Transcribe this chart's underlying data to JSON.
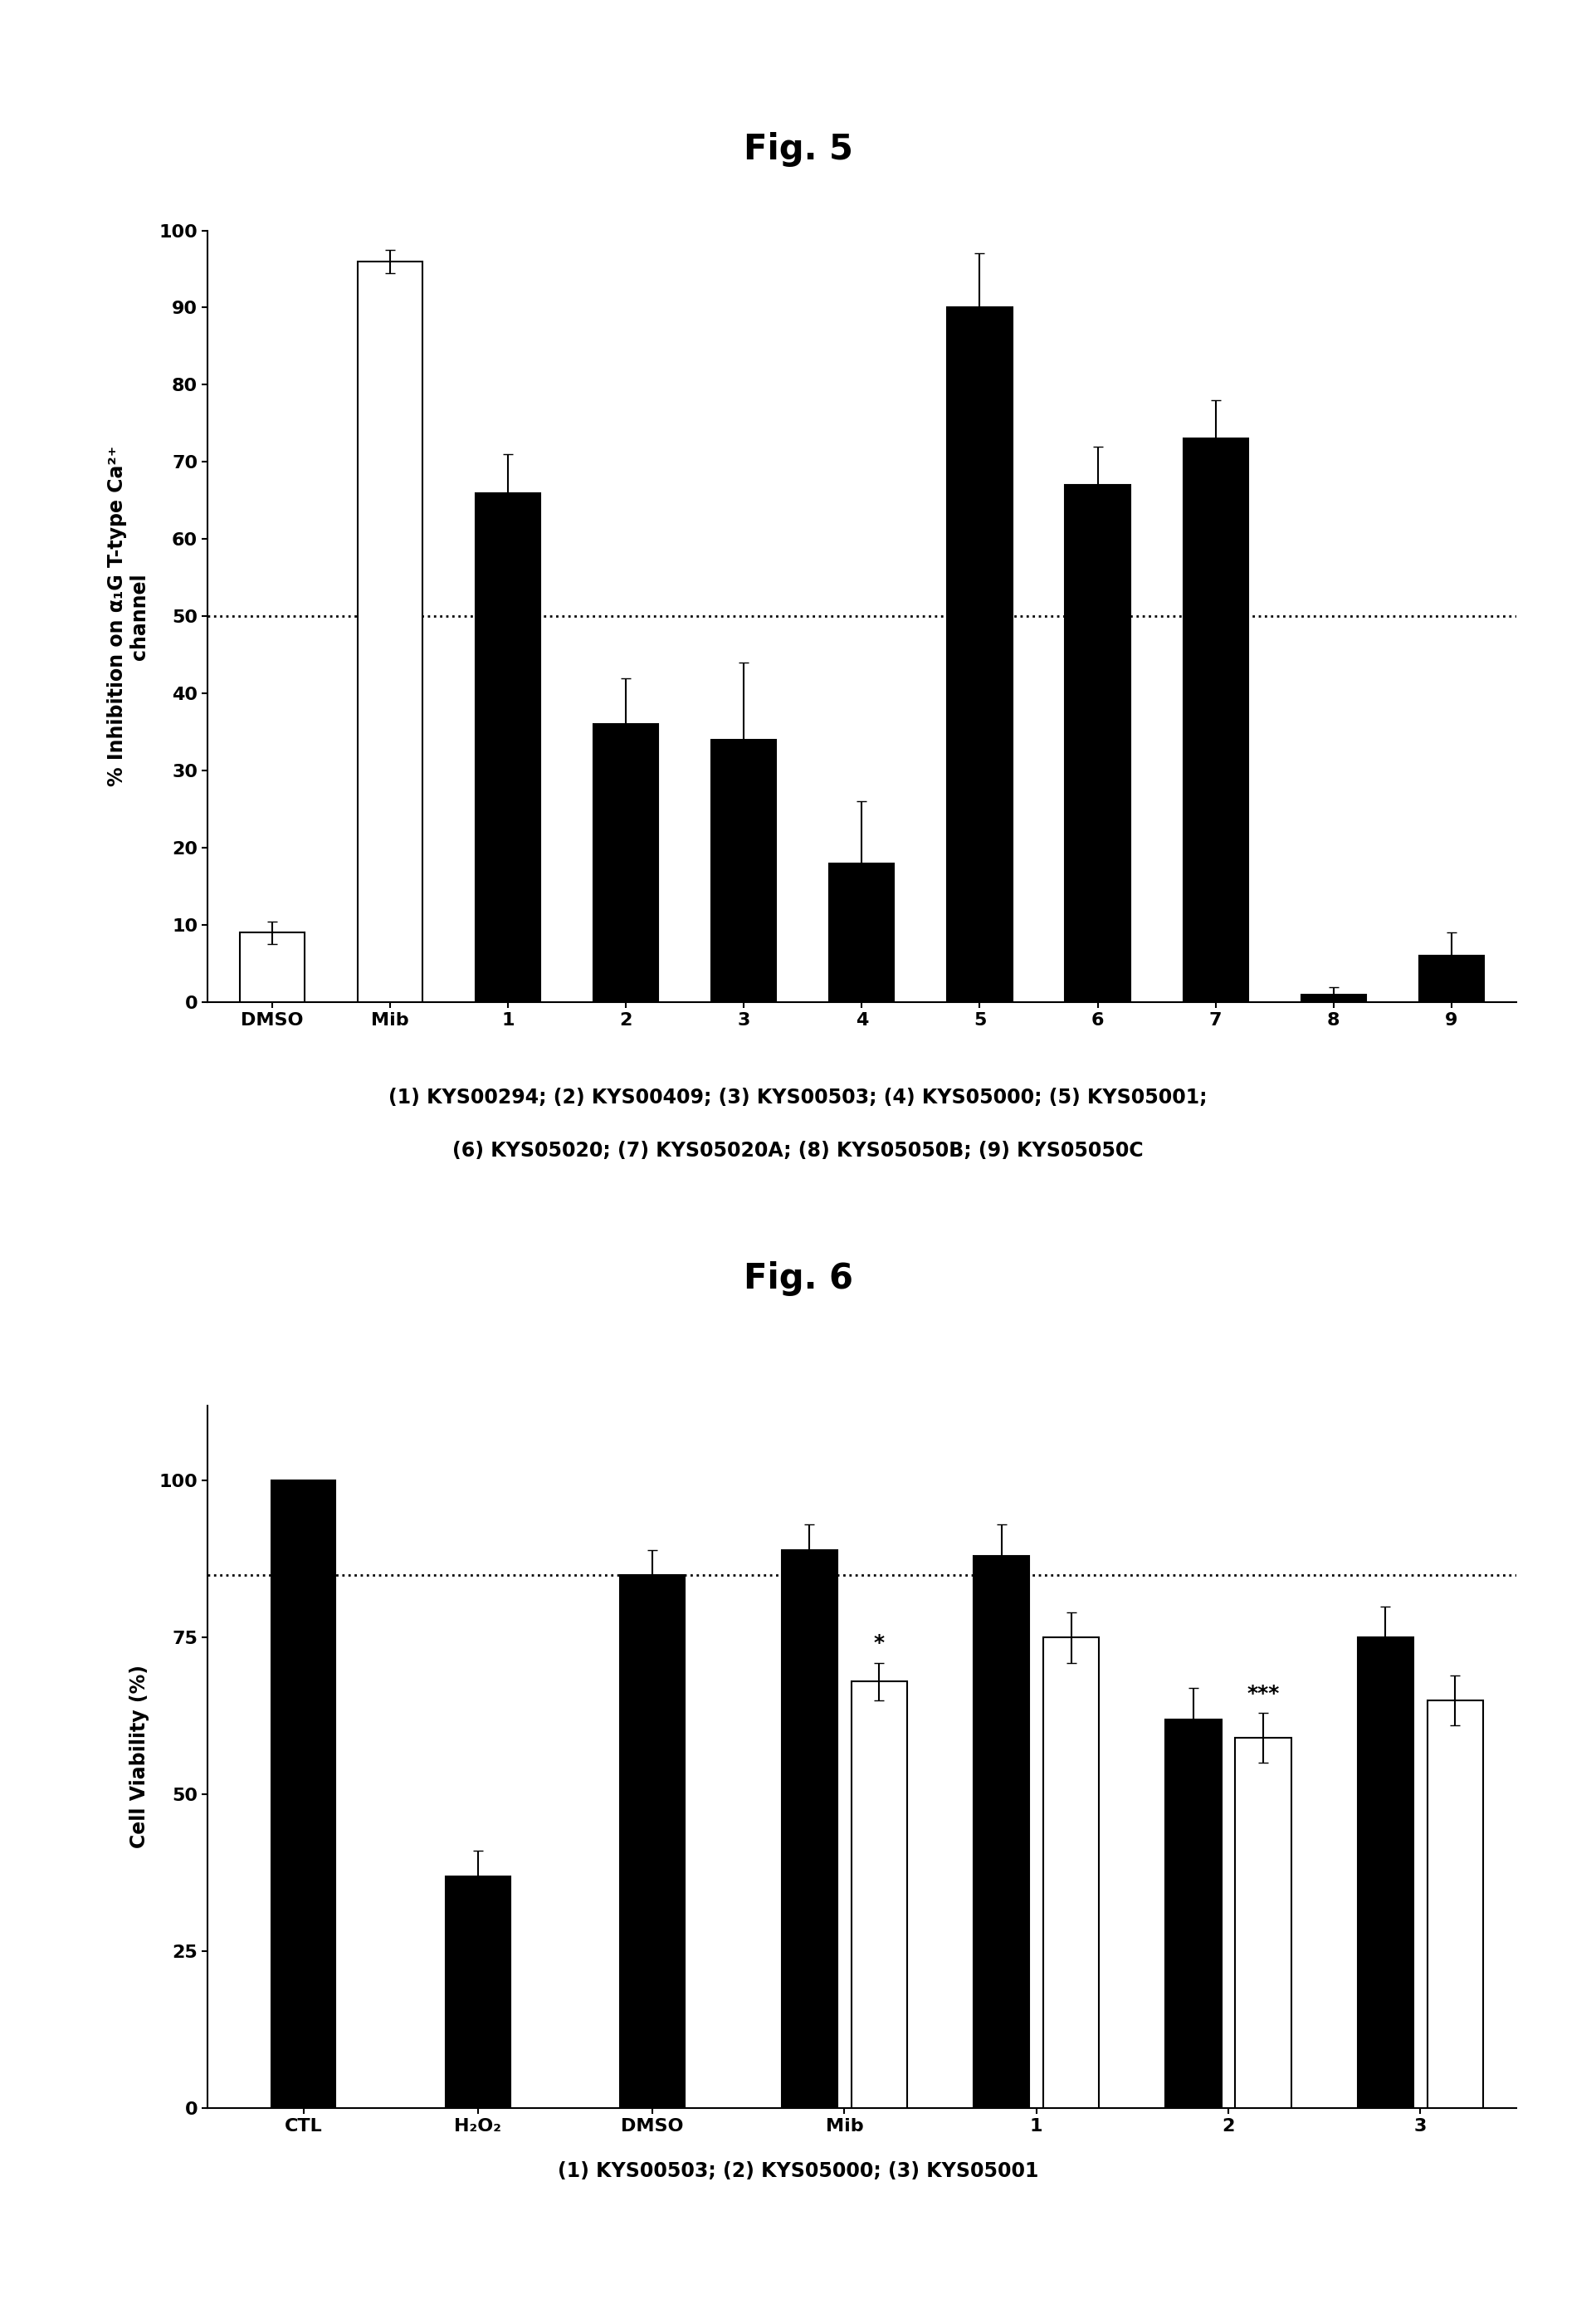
{
  "fig5_title": "Fig. 5",
  "fig5_categories": [
    "DMSO",
    "Mib",
    "1",
    "2",
    "3",
    "4",
    "5",
    "6",
    "7",
    "8",
    "9"
  ],
  "fig5_values": [
    9,
    96,
    66,
    36,
    34,
    18,
    90,
    67,
    73,
    1,
    6
  ],
  "fig5_errors": [
    1.5,
    1.5,
    5,
    6,
    10,
    8,
    7,
    5,
    5,
    1,
    3
  ],
  "fig5_colors": [
    "white",
    "white",
    "black",
    "black",
    "black",
    "black",
    "black",
    "black",
    "black",
    "black",
    "black"
  ],
  "fig5_ylabel_line1": "% Inhibition on α₁G T-type Ca²⁺",
  "fig5_ylabel_line2": "channel",
  "fig5_ylim": [
    0,
    100
  ],
  "fig5_yticks": [
    0,
    10,
    20,
    30,
    40,
    50,
    60,
    70,
    80,
    90,
    100
  ],
  "fig5_hline": 50,
  "fig5_caption_line1": "(1) KYS00294; (2) KYS00409; (3) KYS00503; (4) KYS05000; (5) KYS05001;",
  "fig5_caption_line2": "(6) KYS05020; (7) KYS05020A; (8) KYS05050B; (9) KYS05050C",
  "fig6_title": "Fig. 6",
  "fig6_categories": [
    "CTL",
    "H₂O₂",
    "DMSO",
    "Mib",
    "1",
    "2",
    "3"
  ],
  "fig6_black_values": [
    100,
    37,
    85,
    89,
    88,
    62,
    75
  ],
  "fig6_white_values": [
    null,
    null,
    null,
    68,
    75,
    59,
    65
  ],
  "fig6_black_errors": [
    0,
    4,
    4,
    4,
    5,
    5,
    5
  ],
  "fig6_white_errors": [
    null,
    null,
    null,
    3,
    4,
    4,
    4
  ],
  "fig6_ylabel": "Cell Viability (%)",
  "fig6_ylim": [
    0,
    112
  ],
  "fig6_yticks": [
    0,
    25,
    50,
    75,
    100
  ],
  "fig6_hline": 85,
  "fig6_ann_white": {
    "3": "*",
    "5": "***",
    "7": "**"
  },
  "fig6_caption": "(1) KYS00503; (2) KYS05000; (3) KYS05001",
  "background_color": "white",
  "bar_edgecolor": "black",
  "bar_linewidth": 1.5,
  "errorbar_capsize": 4,
  "errorbar_linewidth": 1.5,
  "fig5_bar_width": 0.55,
  "fig6_bar_width": 0.32,
  "title_fontsize": 30,
  "label_fontsize": 17,
  "tick_fontsize": 16,
  "caption_fontsize": 17,
  "annotation_fontsize": 18
}
